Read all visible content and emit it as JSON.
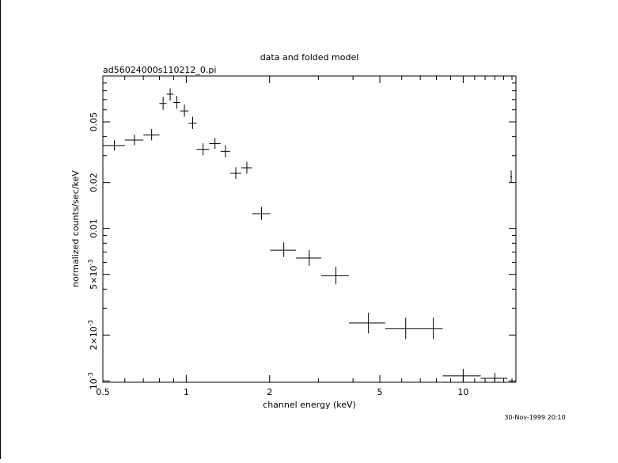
{
  "chart_data": {
    "type": "scatter",
    "title": "data and folded model",
    "subtitle": "ad56024000s110212_0.pi",
    "xlabel": "channel energy (keV)",
    "ylabel": "normalized counts/sec/keV",
    "timestamp": "30-Nov-1999 20:10",
    "x_scale": "log",
    "y_scale": "log",
    "xlim": [
      0.5,
      15.5
    ],
    "ylim": [
      0.00098,
      0.1
    ],
    "grid": false,
    "x_ticks": [
      {
        "value": 0.5,
        "label": "0.5"
      },
      {
        "value": 1,
        "label": "1"
      },
      {
        "value": 2,
        "label": "2"
      },
      {
        "value": 5,
        "label": "5"
      },
      {
        "value": 10,
        "label": "10"
      }
    ],
    "y_ticks": [
      {
        "value": 0.001,
        "mantissa": "10",
        "exp": "-3"
      },
      {
        "value": 0.002,
        "mantissa": "2×10",
        "exp": "-3"
      },
      {
        "value": 0.005,
        "mantissa": "5×10",
        "exp": "-3"
      },
      {
        "value": 0.01,
        "mantissa": "0.01",
        "exp": ""
      },
      {
        "value": 0.02,
        "mantissa": "0.02",
        "exp": ""
      },
      {
        "value": 0.05,
        "mantissa": "0.05",
        "exp": ""
      }
    ],
    "series": [
      {
        "points": [
          {
            "x": 0.55,
            "xlo": 0.5,
            "xhi": 0.6,
            "y": 0.035,
            "ylo": 0.0325,
            "yhi": 0.0378
          },
          {
            "x": 0.65,
            "xlo": 0.6,
            "xhi": 0.7,
            "y": 0.038,
            "ylo": 0.0352,
            "yhi": 0.0412
          },
          {
            "x": 0.75,
            "xlo": 0.7,
            "xhi": 0.8,
            "y": 0.041,
            "ylo": 0.0378,
            "yhi": 0.0448
          },
          {
            "x": 0.825,
            "xlo": 0.8,
            "xhi": 0.85,
            "y": 0.066,
            "ylo": 0.06,
            "yhi": 0.073
          },
          {
            "x": 0.875,
            "xlo": 0.85,
            "xhi": 0.9,
            "y": 0.076,
            "ylo": 0.069,
            "yhi": 0.083
          },
          {
            "x": 0.925,
            "xlo": 0.9,
            "xhi": 0.95,
            "y": 0.067,
            "ylo": 0.061,
            "yhi": 0.074
          },
          {
            "x": 0.985,
            "xlo": 0.95,
            "xhi": 1.02,
            "y": 0.059,
            "ylo": 0.054,
            "yhi": 0.065
          },
          {
            "x": 1.055,
            "xlo": 1.02,
            "xhi": 1.09,
            "y": 0.049,
            "ylo": 0.045,
            "yhi": 0.054
          },
          {
            "x": 1.15,
            "xlo": 1.09,
            "xhi": 1.21,
            "y": 0.033,
            "ylo": 0.0302,
            "yhi": 0.0362
          },
          {
            "x": 1.27,
            "xlo": 1.21,
            "xhi": 1.33,
            "y": 0.036,
            "ylo": 0.0332,
            "yhi": 0.0392
          },
          {
            "x": 1.385,
            "xlo": 1.33,
            "xhi": 1.44,
            "y": 0.032,
            "ylo": 0.0292,
            "yhi": 0.0352
          },
          {
            "x": 1.51,
            "xlo": 1.44,
            "xhi": 1.58,
            "y": 0.023,
            "ylo": 0.0211,
            "yhi": 0.0252
          },
          {
            "x": 1.655,
            "xlo": 1.58,
            "xhi": 1.73,
            "y": 0.025,
            "ylo": 0.0229,
            "yhi": 0.0274
          },
          {
            "x": 1.87,
            "xlo": 1.73,
            "xhi": 2.01,
            "y": 0.0125,
            "ylo": 0.0114,
            "yhi": 0.0138
          },
          {
            "x": 2.25,
            "xlo": 2.01,
            "xhi": 2.49,
            "y": 0.0072,
            "ylo": 0.0065,
            "yhi": 0.0081
          },
          {
            "x": 2.78,
            "xlo": 2.49,
            "xhi": 3.07,
            "y": 0.0064,
            "ylo": 0.0057,
            "yhi": 0.0072
          },
          {
            "x": 3.47,
            "xlo": 3.07,
            "xhi": 3.87,
            "y": 0.0049,
            "ylo": 0.0043,
            "yhi": 0.0056
          },
          {
            "x": 4.55,
            "xlo": 3.87,
            "xhi": 5.23,
            "y": 0.0024,
            "ylo": 0.00205,
            "yhi": 0.0028
          },
          {
            "x": 6.2,
            "xlo": 5.23,
            "xhi": 7.17,
            "y": 0.0022,
            "ylo": 0.00188,
            "yhi": 0.0026
          },
          {
            "x": 7.8,
            "xlo": 7.17,
            "xhi": 8.43,
            "y": 0.0022,
            "ylo": 0.00188,
            "yhi": 0.0026
          },
          {
            "x": 10.0,
            "xlo": 8.43,
            "xhi": 11.57,
            "y": 0.00108,
            "ylo": 0.00098,
            "yhi": 0.0012
          },
          {
            "x": 13.0,
            "xlo": 11.57,
            "xhi": 14.43,
            "y": 0.00104,
            "ylo": 0.00098,
            "yhi": 0.00113
          },
          {
            "x": 14.9,
            "xlo": 14.8,
            "xhi": 15.0,
            "y": 0.0218,
            "ylo": 0.0199,
            "yhi": 0.024
          }
        ]
      }
    ]
  }
}
